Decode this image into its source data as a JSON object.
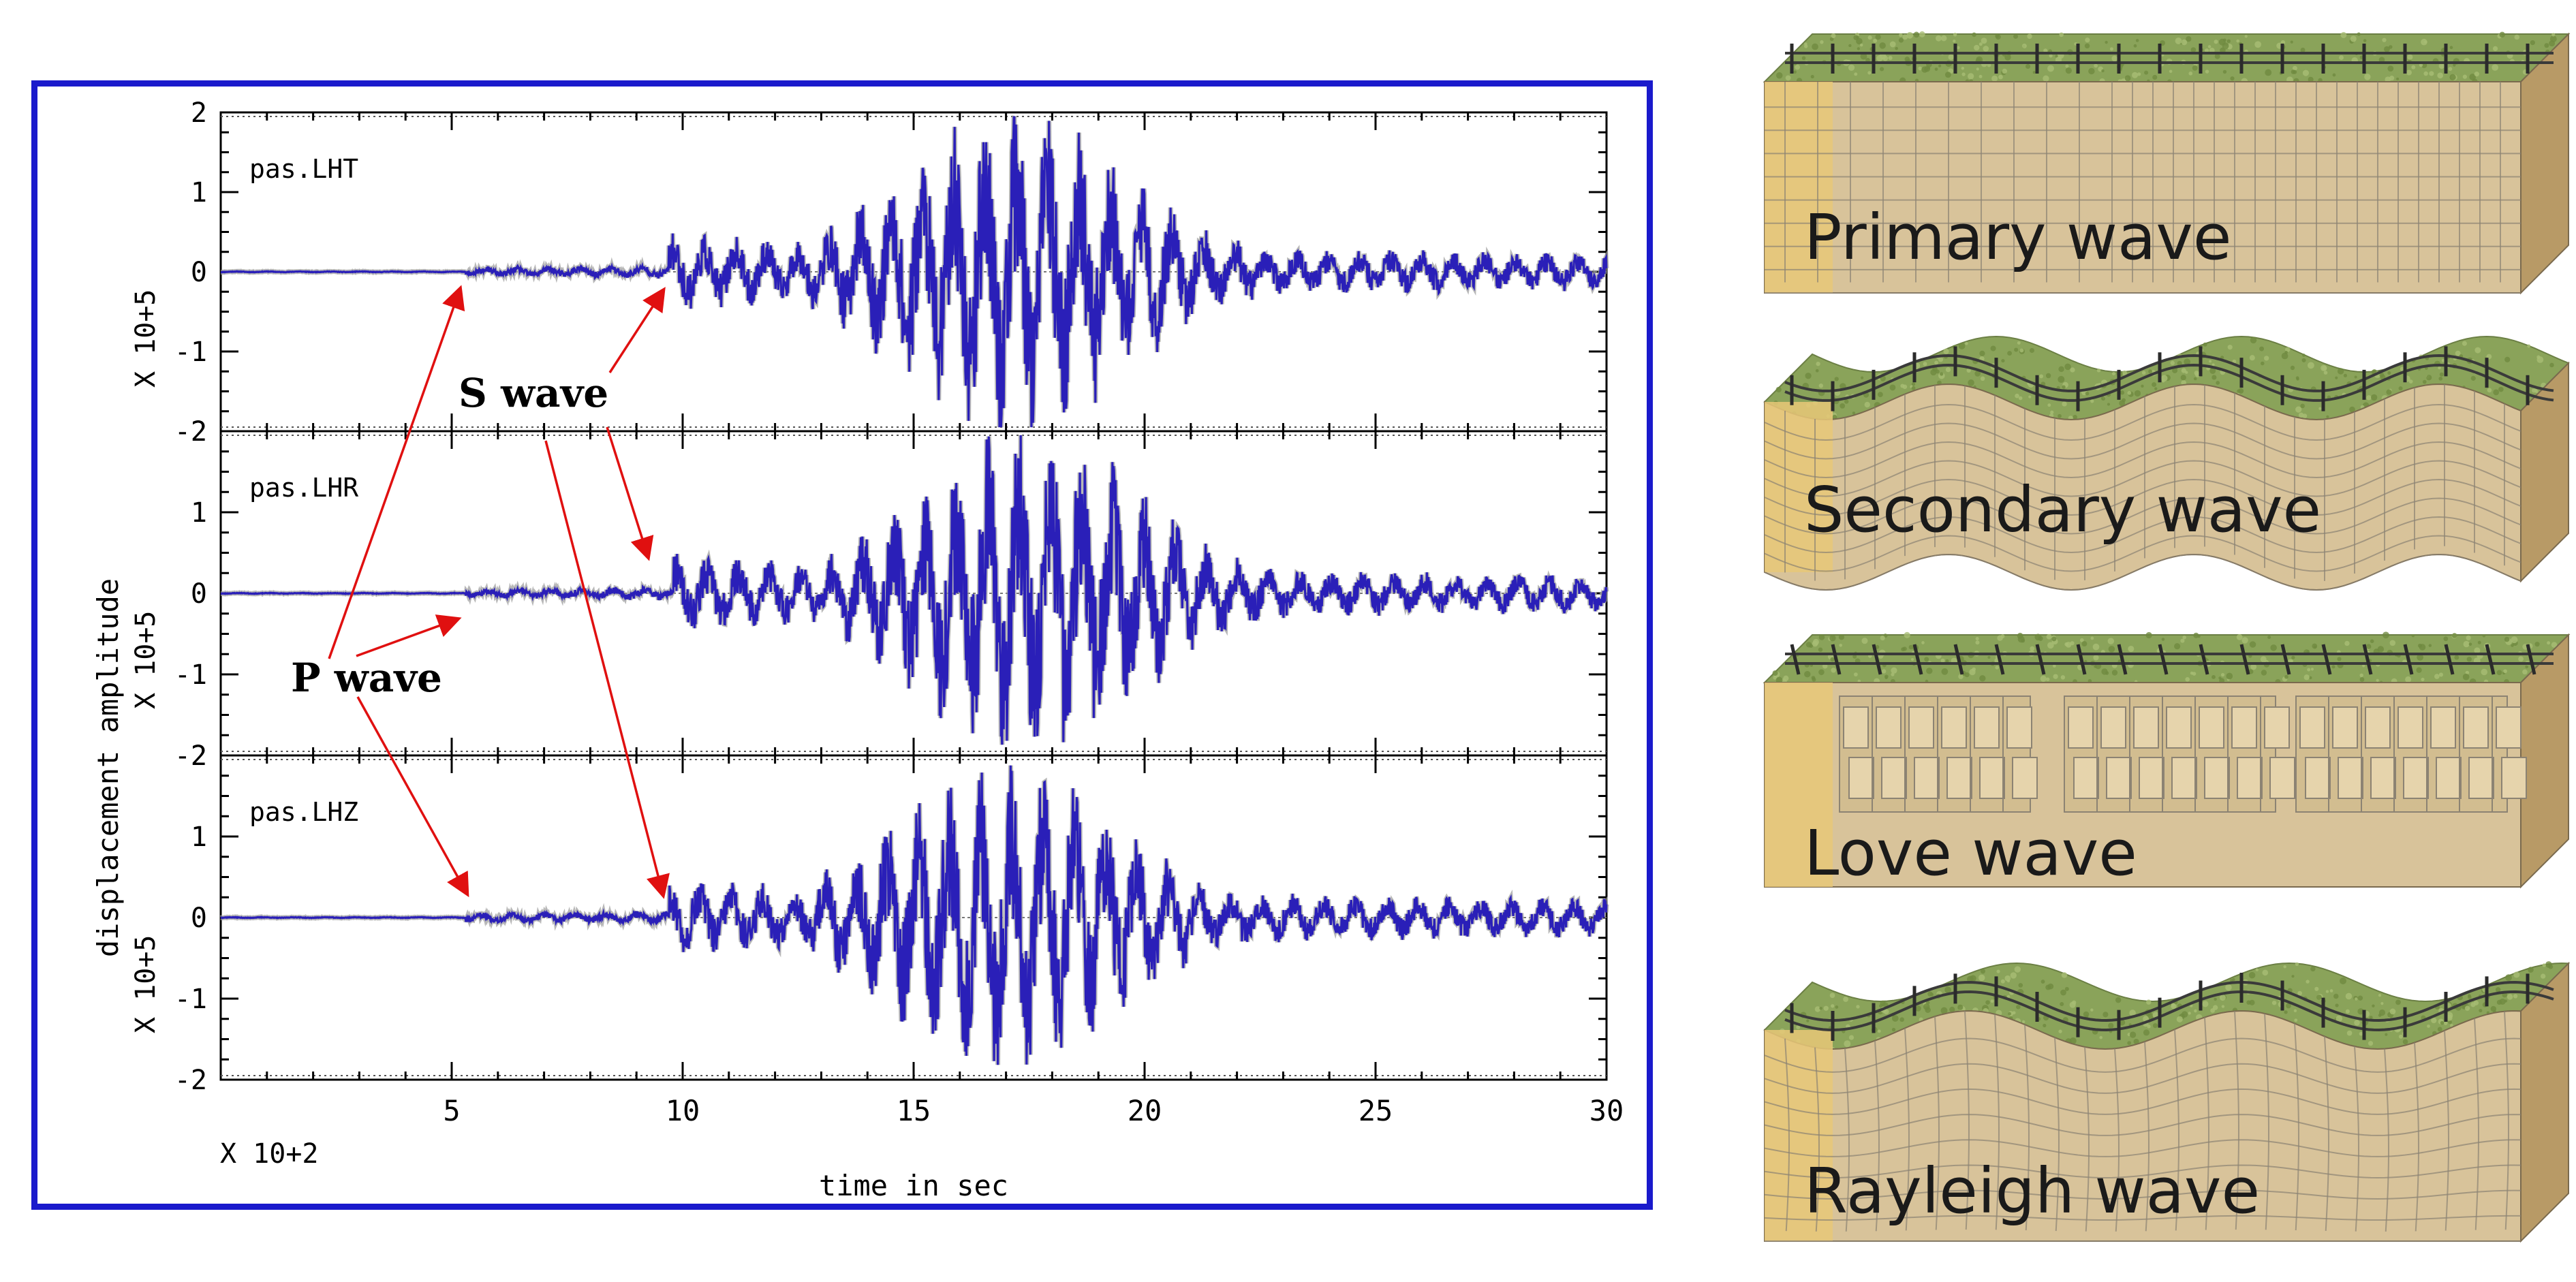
{
  "chart_data": {
    "type": "line",
    "xlabel": "time in sec",
    "ylabel": "displacement amplitude",
    "x_multiplier": "X 10+2",
    "xlim": [
      0,
      30
    ],
    "x_ticks": [
      5,
      10,
      15,
      20,
      25,
      30
    ],
    "ylim": [
      -2,
      2
    ],
    "y_ticks": [
      "-2",
      "-1",
      "0",
      "1",
      "2"
    ],
    "y_multiplier": "X 10+5",
    "series": [
      {
        "name": "pas.LHT",
        "p_arrival": 5.3,
        "s_arrival": 9.7,
        "peak_time": 17.2,
        "peak_amp": 1.9,
        "seed": 11
      },
      {
        "name": "pas.LHR",
        "p_arrival": 5.3,
        "s_arrival": 9.8,
        "peak_time": 17.5,
        "peak_amp": 1.9,
        "seed": 23
      },
      {
        "name": "pas.LHZ",
        "p_arrival": 5.3,
        "s_arrival": 9.7,
        "peak_time": 17.0,
        "peak_amp": 1.8,
        "seed": 37
      }
    ]
  },
  "annotations": {
    "s_wave": "S wave",
    "p_wave": "P wave"
  },
  "wave_blocks": [
    {
      "label": "Primary wave",
      "style": "primary"
    },
    {
      "label": "Secondary wave",
      "style": "secondary"
    },
    {
      "label": "Love wave",
      "style": "love"
    },
    {
      "label": "Rayleigh wave",
      "style": "rayleigh"
    }
  ],
  "colors": {
    "frame": "#1a1acc",
    "trace": "#2a1fb8",
    "trace_fill": "#9a9a9a",
    "arrow": "#e01010",
    "soil": "#d8c39a",
    "soil_grid": "#8c8373",
    "soil_dark": "#b89a66",
    "grass": "#8aa35a",
    "face_left": "#e8c878"
  }
}
